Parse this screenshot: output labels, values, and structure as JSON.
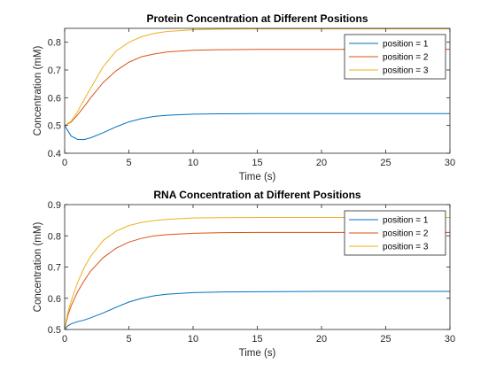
{
  "chart_data": [
    {
      "type": "line",
      "title": "Protein Concentration at Different Positions",
      "xlabel": "Time (s)",
      "ylabel": "Concentration (mM)",
      "xlim": [
        0,
        30
      ],
      "ylim": [
        0.4,
        0.85
      ],
      "x_ticks": [
        "0",
        "5",
        "10",
        "15",
        "20",
        "25",
        "30"
      ],
      "y_ticks": [
        "0.4",
        "0.5",
        "0.6",
        "0.7",
        "0.8"
      ],
      "legend_position": "top-right",
      "grid": false,
      "x": [
        0,
        0.5,
        1,
        1.5,
        2,
        3,
        4,
        5,
        6,
        7,
        8,
        10,
        12,
        15,
        20,
        25,
        30
      ],
      "series": [
        {
          "name": "position = 1",
          "color": "#0072BD",
          "values": [
            0.5,
            0.462,
            0.45,
            0.449,
            0.455,
            0.474,
            0.495,
            0.513,
            0.525,
            0.533,
            0.537,
            0.541,
            0.542,
            0.543,
            0.543,
            0.543,
            0.543
          ]
        },
        {
          "name": "position = 2",
          "color": "#D95319",
          "values": [
            0.5,
            0.512,
            0.538,
            0.567,
            0.598,
            0.655,
            0.697,
            0.728,
            0.748,
            0.758,
            0.765,
            0.771,
            0.773,
            0.774,
            0.774,
            0.774,
            0.774
          ]
        },
        {
          "name": "position = 3",
          "color": "#EDB120",
          "values": [
            0.5,
            0.515,
            0.55,
            0.592,
            0.632,
            0.712,
            0.768,
            0.8,
            0.82,
            0.832,
            0.839,
            0.845,
            0.847,
            0.848,
            0.848,
            0.848,
            0.848
          ]
        }
      ]
    },
    {
      "type": "line",
      "title": "RNA Concentration at Different Positions",
      "xlabel": "Time (s)",
      "ylabel": "Concentration (mM)",
      "xlim": [
        0,
        30
      ],
      "ylim": [
        0.5,
        0.9
      ],
      "x_ticks": [
        "0",
        "5",
        "10",
        "15",
        "20",
        "25",
        "30"
      ],
      "y_ticks": [
        "0.5",
        "0.6",
        "0.7",
        "0.8",
        "0.9"
      ],
      "legend_position": "top-right",
      "grid": false,
      "x": [
        0,
        0.25,
        0.5,
        1,
        1.5,
        2,
        3,
        4,
        5,
        6,
        7,
        8,
        10,
        12,
        15,
        20,
        25,
        30
      ],
      "series": [
        {
          "name": "position = 1",
          "color": "#0072BD",
          "values": [
            0.5,
            0.512,
            0.518,
            0.525,
            0.53,
            0.537,
            0.553,
            0.571,
            0.588,
            0.6,
            0.608,
            0.613,
            0.618,
            0.62,
            0.621,
            0.622,
            0.622,
            0.622
          ]
        },
        {
          "name": "position = 2",
          "color": "#D95319",
          "values": [
            0.5,
            0.545,
            0.575,
            0.62,
            0.655,
            0.686,
            0.73,
            0.76,
            0.78,
            0.792,
            0.8,
            0.804,
            0.808,
            0.81,
            0.811,
            0.811,
            0.811,
            0.811
          ]
        },
        {
          "name": "position = 3",
          "color": "#EDB120",
          "values": [
            0.5,
            0.555,
            0.59,
            0.65,
            0.696,
            0.733,
            0.785,
            0.815,
            0.833,
            0.843,
            0.849,
            0.853,
            0.857,
            0.858,
            0.859,
            0.859,
            0.859,
            0.859
          ]
        }
      ]
    }
  ]
}
